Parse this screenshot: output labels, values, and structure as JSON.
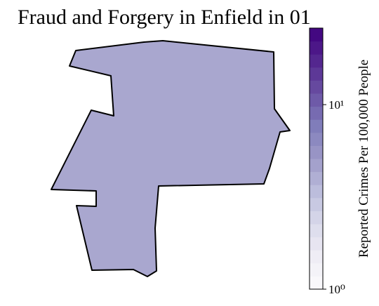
{
  "chart_data": {
    "type": "choropleth",
    "title": "Fraud and Forgery in Enfield in 01",
    "regions": [
      {
        "name": "Enfield",
        "value": 4.4
      }
    ],
    "colorbar_label": "Reported Crimes Per 100,000 People",
    "colormap": "Purples",
    "log_scale": true,
    "ylim": [
      1,
      26
    ],
    "yticks": [
      {
        "value": 1,
        "label": "10⁰"
      },
      {
        "value": 10,
        "label": "10¹"
      }
    ]
  }
}
